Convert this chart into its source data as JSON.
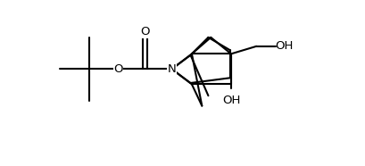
{
  "background": "#ffffff",
  "line_color": "#000000",
  "line_width": 1.5,
  "font_size": 9.5,
  "figsize": [
    4.1,
    1.86
  ],
  "dpi": 100,
  "xlim": [
    0,
    10.5
  ],
  "ylim": [
    1.5,
    8.0
  ]
}
